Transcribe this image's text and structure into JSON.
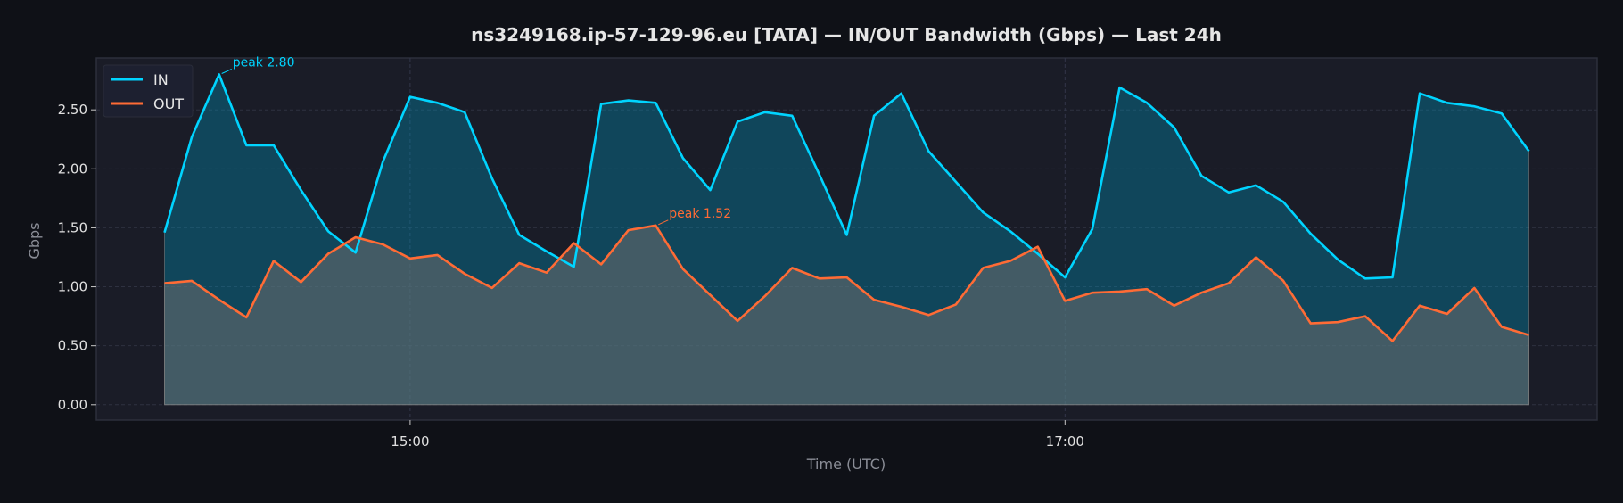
{
  "chart_data": {
    "type": "line",
    "title": "ns3249168.ip-57-129-96.eu [TATA] — IN/OUT Bandwidth (Gbps) — Last 24h",
    "xlabel": "Time (UTC)",
    "ylabel": "Gbps",
    "x_start": "14:15",
    "x_step_minutes": 5,
    "xlim_index": [
      -2.5,
      52.5
    ],
    "ylim": [
      -0.13,
      2.94
    ],
    "yticks": [
      0,
      0.5,
      1.0,
      1.5,
      2.0,
      2.5
    ],
    "ytick_labels": [
      "0.00",
      "0.50",
      "1.00",
      "1.50",
      "2.00",
      "2.50"
    ],
    "xticks": [
      {
        "index": 9,
        "label": "15:00"
      },
      {
        "index": 33,
        "label": "17:00"
      }
    ],
    "grid": true,
    "legend_position": "top-left",
    "series": [
      {
        "name": "IN",
        "color": "#00d4ff",
        "fill": "rgba(0,150,190,0.35)",
        "values": [
          1.46,
          2.27,
          2.8,
          2.2,
          2.2,
          1.82,
          1.47,
          1.29,
          2.06,
          2.61,
          2.56,
          2.48,
          1.92,
          1.44,
          1.3,
          1.17,
          2.55,
          2.58,
          2.56,
          2.09,
          1.82,
          2.4,
          2.48,
          2.45,
          1.95,
          1.44,
          2.45,
          2.64,
          2.15,
          1.89,
          1.63,
          1.47,
          1.28,
          1.08,
          1.49,
          2.69,
          2.56,
          2.35,
          1.94,
          1.8,
          1.86,
          1.72,
          1.45,
          1.23,
          1.07,
          1.08,
          2.64,
          2.56,
          2.53,
          2.47,
          2.15
        ]
      },
      {
        "name": "OUT",
        "color": "#ff6b35",
        "fill": "rgba(110,110,110,0.55)",
        "values": [
          1.03,
          1.05,
          0.89,
          0.74,
          1.22,
          1.04,
          1.28,
          1.42,
          1.36,
          1.24,
          1.27,
          1.11,
          0.99,
          1.2,
          1.12,
          1.37,
          1.19,
          1.48,
          1.52,
          1.15,
          0.93,
          0.71,
          0.92,
          1.16,
          1.07,
          1.08,
          0.89,
          0.83,
          0.76,
          0.85,
          1.16,
          1.22,
          1.34,
          0.88,
          0.95,
          0.96,
          0.98,
          0.84,
          0.95,
          1.03,
          1.25,
          1.05,
          0.69,
          0.7,
          0.75,
          0.54,
          0.84,
          0.77,
          0.99,
          0.66,
          0.59
        ]
      }
    ],
    "annotations": [
      {
        "series": "IN",
        "index": 2,
        "text": "peak 2.80"
      },
      {
        "series": "OUT",
        "index": 18,
        "text": "peak 1.52"
      }
    ]
  },
  "colors": {
    "background": "#0f1117",
    "plot_bg": "#1a1c27",
    "text": "#e6e6e6",
    "muted": "#8a8d96"
  }
}
